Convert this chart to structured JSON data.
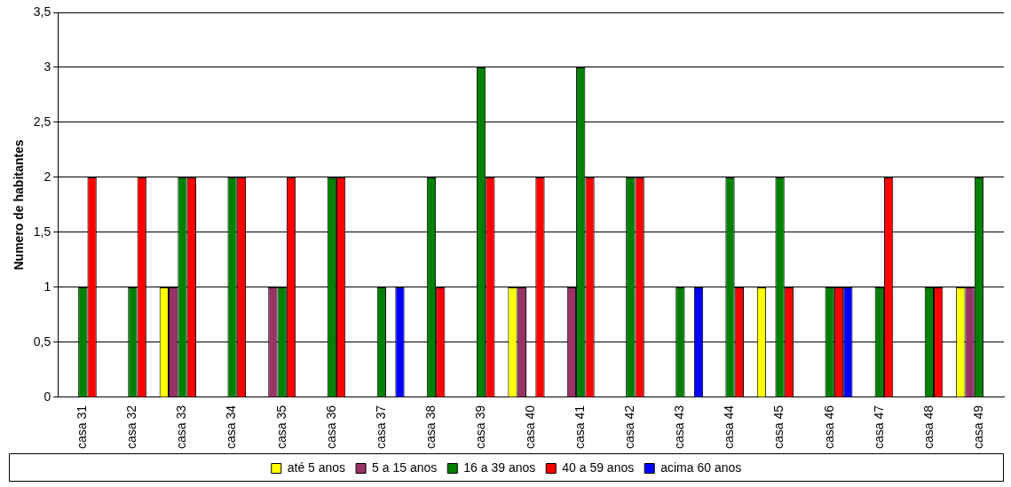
{
  "chart_data": {
    "type": "bar",
    "ylabel": "Numero de habitantes",
    "categories": [
      "casa 31",
      "casa 32",
      "casa 33",
      "casa 34",
      "casa 35",
      "casa 36",
      "casa 37",
      "casa 38",
      "casa 39",
      "casa 40",
      "casa 41",
      "casa 42",
      "casa 43",
      "casa 44",
      "casa 45",
      "casa 46",
      "casa 47",
      "casa 48",
      "casa 49"
    ],
    "series": [
      {
        "name": "até 5 anos",
        "color": "#ffff00",
        "values": [
          null,
          null,
          1,
          null,
          null,
          null,
          null,
          null,
          null,
          1,
          null,
          null,
          null,
          null,
          1,
          null,
          null,
          null,
          1
        ]
      },
      {
        "name": "5 a 15 anos",
        "color": "#993366",
        "values": [
          null,
          null,
          1,
          null,
          1,
          null,
          null,
          null,
          null,
          1,
          1,
          null,
          null,
          null,
          null,
          null,
          null,
          null,
          1
        ]
      },
      {
        "name": "16 a 39 anos",
        "color": "#008000",
        "values": [
          1,
          1,
          2,
          2,
          1,
          2,
          1,
          2,
          3,
          null,
          3,
          2,
          1,
          2,
          2,
          1,
          1,
          1,
          2
        ]
      },
      {
        "name": "40 a 59 anos",
        "color": "#ff0000",
        "values": [
          2,
          2,
          2,
          2,
          2,
          2,
          null,
          1,
          2,
          2,
          2,
          2,
          null,
          1,
          1,
          1,
          2,
          1,
          null
        ]
      },
      {
        "name": "acima 60 anos",
        "color": "#0000ff",
        "values": [
          null,
          null,
          null,
          null,
          null,
          null,
          1,
          null,
          null,
          null,
          null,
          null,
          1,
          null,
          null,
          1,
          null,
          null,
          null
        ]
      }
    ],
    "ylim": [
      0,
      3.5
    ],
    "yticks": [
      0,
      {
        "value": 0.5,
        "label": "0,5"
      },
      1,
      {
        "value": 1.5,
        "label": "1,5"
      },
      2,
      {
        "value": 2.5,
        "label": "2,5"
      },
      3,
      {
        "value": 3.5,
        "label": "3,5"
      }
    ],
    "grid": "y",
    "legend": "bottom"
  }
}
